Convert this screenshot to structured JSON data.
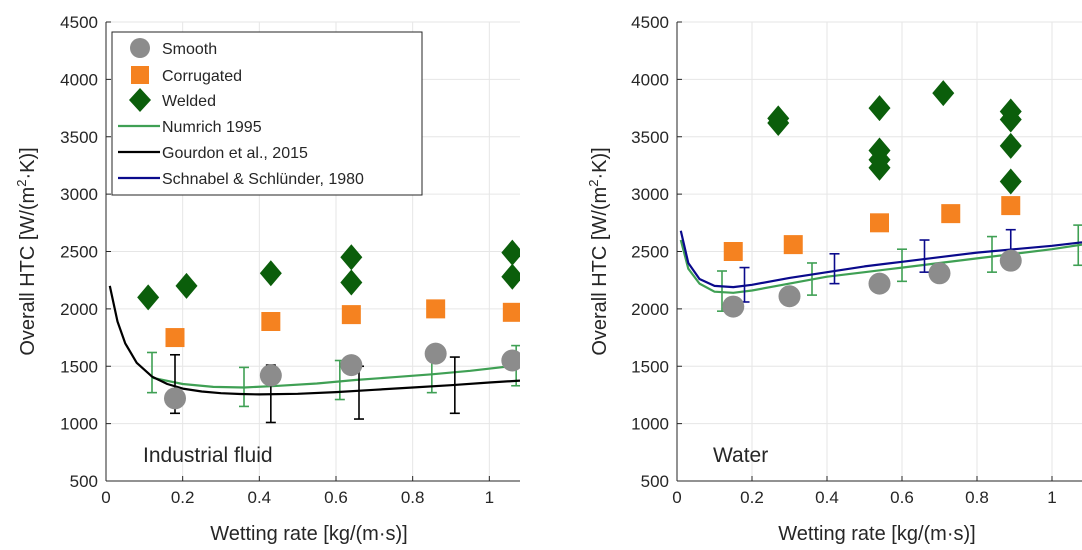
{
  "colors": {
    "smooth": "#8c8c8c",
    "corrugated": "#f58220",
    "welded": "#0b5e0b",
    "numrich": "#3fa054",
    "gourdon": "#000000",
    "schnabel": "#0a0a8c",
    "grid": "#e6e6e6",
    "axis": "#262626"
  },
  "legend": {
    "smooth": "Smooth",
    "corrugated": "Corrugated",
    "welded": "Welded",
    "numrich": "Numrich 1995",
    "gourdon": "Gourdon et al., 2015",
    "schnabel": "Schnabel & Schlünder, 1980"
  },
  "chart_data": [
    {
      "type": "scatter",
      "annotation": "Industrial fluid",
      "xlabel": "Wetting rate [kg/(m·s)]",
      "ylabel": "Overall HTC [W/(m² K)]",
      "xlim": [
        0,
        1.08
      ],
      "ylim": [
        500,
        4500
      ],
      "xticks": [
        0,
        0.2,
        0.4,
        0.6,
        0.8,
        1
      ],
      "xticklabels": [
        "0",
        "0.2",
        "0.4",
        "0.6",
        "0.8",
        "1"
      ],
      "yticks": [
        500,
        1000,
        1500,
        2000,
        2500,
        3000,
        3500,
        4000,
        4500
      ],
      "yticklabels": [
        "500",
        "1000",
        "1500",
        "2000",
        "2500",
        "3000",
        "3500",
        "4000",
        "4500"
      ],
      "grid": true,
      "legend_position": "top-left",
      "series": [
        {
          "name": "Smooth",
          "marker": "circle",
          "x": [
            0.18,
            0.43,
            0.64,
            0.86,
            1.06
          ],
          "y": [
            1220,
            1420,
            1510,
            1610,
            1550
          ]
        },
        {
          "name": "Corrugated",
          "marker": "square",
          "x": [
            0.18,
            0.43,
            0.64,
            0.86,
            1.06
          ],
          "y": [
            1750,
            1890,
            1950,
            2000,
            1970
          ]
        },
        {
          "name": "Welded",
          "marker": "diamond",
          "x": [
            0.11,
            0.21,
            0.43,
            0.64,
            0.64,
            1.06,
            1.06
          ],
          "y": [
            2100,
            2200,
            2310,
            2230,
            2450,
            2280,
            2490
          ]
        },
        {
          "name": "Numrich 1995",
          "line": true,
          "x": [
            0.12,
            0.2,
            0.28,
            0.36,
            0.45,
            0.55,
            0.65,
            0.75,
            0.85,
            0.95,
            1.08
          ],
          "y": [
            1400,
            1345,
            1320,
            1315,
            1330,
            1350,
            1380,
            1405,
            1430,
            1460,
            1510
          ],
          "errorbars": [
            {
              "x": 0.12,
              "lo": 1270,
              "hi": 1620
            },
            {
              "x": 0.36,
              "lo": 1150,
              "hi": 1490
            },
            {
              "x": 0.61,
              "lo": 1210,
              "hi": 1550
            },
            {
              "x": 0.85,
              "lo": 1270,
              "hi": 1590
            },
            {
              "x": 1.07,
              "lo": 1330,
              "hi": 1680
            }
          ]
        },
        {
          "name": "Gourdon et al., 2015",
          "line": true,
          "x": [
            0.01,
            0.03,
            0.05,
            0.08,
            0.12,
            0.16,
            0.2,
            0.25,
            0.3,
            0.35,
            0.4,
            0.5,
            0.6,
            0.7,
            0.8,
            0.9,
            1.0,
            1.08
          ],
          "y": [
            2200,
            1890,
            1700,
            1530,
            1410,
            1345,
            1305,
            1280,
            1265,
            1258,
            1255,
            1260,
            1275,
            1295,
            1315,
            1335,
            1358,
            1375
          ],
          "errorbars": [
            {
              "x": 0.18,
              "lo": 1090,
              "hi": 1600
            },
            {
              "x": 0.43,
              "lo": 1010,
              "hi": 1510
            },
            {
              "x": 0.66,
              "lo": 1040,
              "hi": 1500
            },
            {
              "x": 0.91,
              "lo": 1090,
              "hi": 1580
            }
          ]
        }
      ]
    },
    {
      "type": "scatter",
      "annotation": "Water",
      "xlabel": "Wetting rate [kg/(m·s)]",
      "ylabel": "Overall HTC [W/(m² K)]",
      "xlim": [
        0,
        1.08
      ],
      "ylim": [
        500,
        4500
      ],
      "xticks": [
        0,
        0.2,
        0.4,
        0.6,
        0.8,
        1
      ],
      "xticklabels": [
        "0",
        "0.2",
        "0.4",
        "0.6",
        "0.8",
        "1"
      ],
      "yticks": [
        500,
        1000,
        1500,
        2000,
        2500,
        3000,
        3500,
        4000,
        4500
      ],
      "yticklabels": [
        "500",
        "1000",
        "1500",
        "2000",
        "2500",
        "3000",
        "3500",
        "4000",
        "4500"
      ],
      "grid": true,
      "series": [
        {
          "name": "Smooth",
          "marker": "circle",
          "x": [
            0.15,
            0.3,
            0.54,
            0.7,
            0.89
          ],
          "y": [
            2020,
            2110,
            2220,
            2310,
            2420
          ]
        },
        {
          "name": "Corrugated",
          "marker": "square",
          "x": [
            0.15,
            0.31,
            0.54,
            0.73,
            0.89
          ],
          "y": [
            2500,
            2560,
            2750,
            2830,
            2900
          ]
        },
        {
          "name": "Welded",
          "marker": "diamond",
          "x": [
            0.27,
            0.27,
            0.54,
            0.54,
            0.54,
            0.54,
            0.71,
            0.89,
            0.89,
            0.89,
            0.89
          ],
          "y": [
            3620,
            3660,
            3750,
            3380,
            3300,
            3230,
            3880,
            3720,
            3650,
            3420,
            3110
          ]
        },
        {
          "name": "Numrich 1995",
          "line": true,
          "x": [
            0.01,
            0.03,
            0.06,
            0.1,
            0.15,
            0.2,
            0.3,
            0.4,
            0.5,
            0.6,
            0.7,
            0.8,
            0.9,
            1.0,
            1.08
          ],
          "y": [
            2600,
            2350,
            2220,
            2150,
            2140,
            2160,
            2220,
            2280,
            2320,
            2360,
            2400,
            2440,
            2480,
            2520,
            2560
          ],
          "errorbars": [
            {
              "x": 0.12,
              "lo": 1980,
              "hi": 2330
            },
            {
              "x": 0.36,
              "lo": 2120,
              "hi": 2400
            },
            {
              "x": 0.6,
              "lo": 2240,
              "hi": 2520
            },
            {
              "x": 0.84,
              "lo": 2320,
              "hi": 2630
            },
            {
              "x": 1.07,
              "lo": 2380,
              "hi": 2730
            }
          ]
        },
        {
          "name": "Schnabel & Schlünder, 1980",
          "line": true,
          "x": [
            0.01,
            0.03,
            0.06,
            0.1,
            0.15,
            0.2,
            0.3,
            0.4,
            0.5,
            0.6,
            0.7,
            0.8,
            0.9,
            1.0,
            1.08
          ],
          "y": [
            2680,
            2400,
            2260,
            2200,
            2190,
            2210,
            2270,
            2320,
            2370,
            2410,
            2450,
            2490,
            2520,
            2550,
            2580
          ],
          "errorbars": [
            {
              "x": 0.18,
              "lo": 2060,
              "hi": 2360
            },
            {
              "x": 0.42,
              "lo": 2220,
              "hi": 2480
            },
            {
              "x": 0.66,
              "lo": 2320,
              "hi": 2600
            },
            {
              "x": 0.89,
              "lo": 2380,
              "hi": 2690
            }
          ]
        }
      ]
    }
  ]
}
